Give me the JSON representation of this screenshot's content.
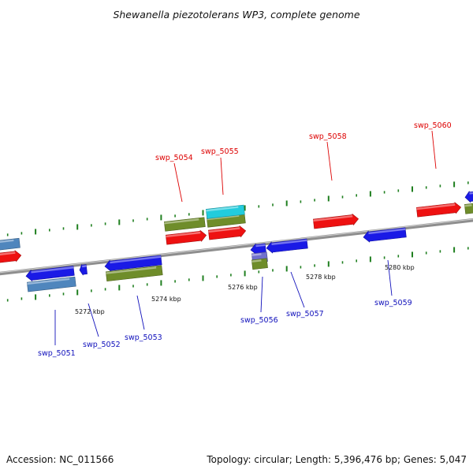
{
  "title": "Shewanella piezotolerans WP3, complete genome",
  "ticks": [
    {
      "kbp": 5272,
      "label": "5272 kbp"
    },
    {
      "kbp": 5274,
      "label": "5274 kbp"
    },
    {
      "kbp": 5276,
      "label": "5276 kbp"
    },
    {
      "kbp": 5278,
      "label": "5278 kbp"
    },
    {
      "kbp": 5280,
      "label": "5280 kbp"
    }
  ],
  "colors": {
    "forward": "#ee1111",
    "reverse": "#1a1ae6",
    "forward_label": "#dd0000",
    "reverse_label": "#1010bb",
    "green": "#6f8d2a",
    "cyan": "#22ccdd",
    "steelblue": "#4f86bd",
    "purple": "#7070cc",
    "tick": "#1f7f1f",
    "backbone": "#8e8e8e"
  },
  "genes": [
    {
      "label": "swp_5051",
      "strand": "reverse"
    },
    {
      "label": "swp_5052",
      "strand": "reverse"
    },
    {
      "label": "swp_5053",
      "strand": "reverse"
    },
    {
      "label": "swp_5054",
      "strand": "forward"
    },
    {
      "label": "swp_5055",
      "strand": "forward"
    },
    {
      "label": "swp_5056",
      "strand": "reverse"
    },
    {
      "label": "swp_5057",
      "strand": "reverse"
    },
    {
      "label": "swp_5058",
      "strand": "forward"
    },
    {
      "label": "swp_5059",
      "strand": "reverse"
    },
    {
      "label": "swp_5060",
      "strand": "forward"
    }
  ],
  "footer": {
    "accession": "Accession: NC_011566",
    "summary": "Topology: circular; Length: 5,396,476 bp; Genes: 5,047"
  }
}
